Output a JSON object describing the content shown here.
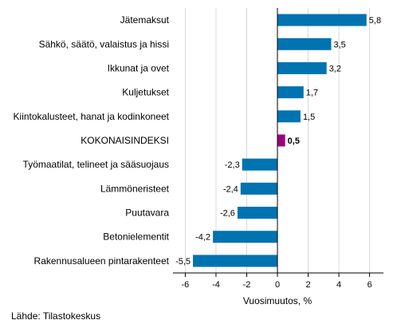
{
  "source": "Lähde: Tilastokeskus",
  "chart_data": {
    "type": "bar",
    "orientation": "horizontal",
    "categories": [
      "Jätemaksut",
      "Sähkö, säätö, valaistus ja hissi",
      "Ikkunat ja ovet",
      "Kuljetukset",
      "Kiintokalusteet, hanat ja kodinkoneet",
      "KOKONAISINDEKSI",
      "Työmaatilat, telineet ja sääsuojaus",
      "Lämmöneristeet",
      "Puutavara",
      "Betonielementit",
      "Rakennusalueen pintarakenteet"
    ],
    "values": [
      5.8,
      3.5,
      3.2,
      1.7,
      1.5,
      0.5,
      -2.3,
      -2.4,
      -2.6,
      -4.2,
      -5.5
    ],
    "value_labels": [
      "5,8",
      "3,5",
      "3,2",
      "1,7",
      "1,5",
      "0,5",
      "-2,3",
      "-2,4",
      "-2,6",
      "-4,2",
      "-5,5"
    ],
    "highlight_index": 5,
    "xlabel": "Vuosimuutos, %",
    "xlim": [
      -6.8,
      6.9
    ],
    "xticks": [
      -6,
      -4,
      -2,
      0,
      2,
      4,
      6
    ],
    "xtick_labels": [
      "-6",
      "-4",
      "-2",
      "0",
      "2",
      "4",
      "6"
    ],
    "grid": "vertical",
    "colors": {
      "bar": "#0073b0",
      "highlight": "#9e007e",
      "grid": "#d9d9d9",
      "axis": "#000000"
    }
  }
}
